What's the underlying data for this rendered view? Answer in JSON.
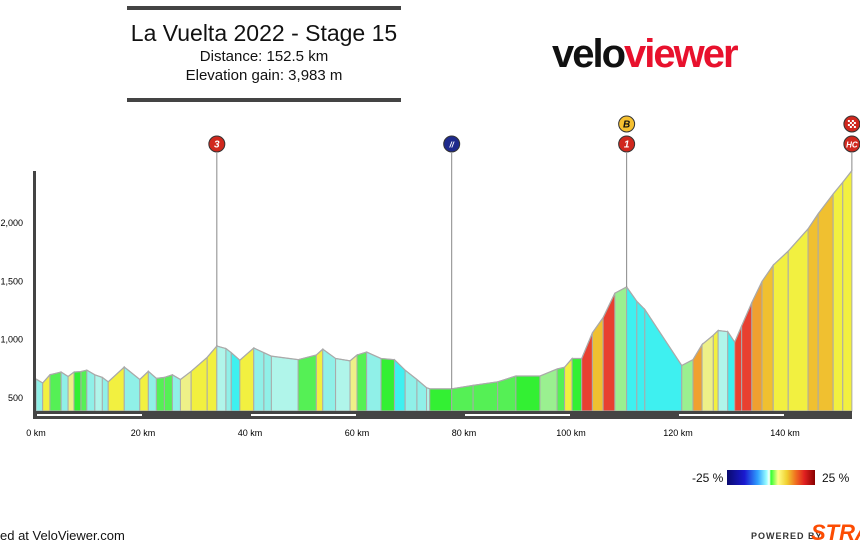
{
  "header": {
    "title": "La Vuelta 2022 - Stage 15",
    "distance": "Distance: 152.5 km",
    "elevation_gain": "Elevation gain: 3,983 m"
  },
  "logo": {
    "part1": "velo",
    "part2": "viewer",
    "accent": "#e8112d"
  },
  "legend": {
    "min_label": "-25 %",
    "max_label": "25 %"
  },
  "footer": {
    "credit": "ed at VeloViewer.com",
    "powered_by": "POWERED BY",
    "brand": "STRA",
    "brand_color": "#fc4c02"
  },
  "chart_data": {
    "type": "area",
    "xlabel": "",
    "ylabel": "",
    "xlim": [
      0,
      152.5
    ],
    "ylim": [
      380,
      2450
    ],
    "x_ticks": [
      "0 km",
      "20 km",
      "40 km",
      "60 km",
      "80 km",
      "100 km",
      "120 km",
      "140 km"
    ],
    "x_tick_values": [
      0,
      20,
      40,
      60,
      80,
      100,
      120,
      140
    ],
    "y_ticks": [
      "500",
      "1,000",
      "1,500",
      "2,000"
    ],
    "y_tick_values": [
      500,
      1000,
      1500,
      2000
    ],
    "color_scale": "gradient % (-25 to 25)",
    "profile": [
      [
        0,
        654
      ],
      [
        1.25,
        620
      ],
      [
        2.6,
        690
      ],
      [
        4.7,
        714
      ],
      [
        6,
        676
      ],
      [
        7.1,
        714
      ],
      [
        8.4,
        718
      ],
      [
        9.5,
        730
      ],
      [
        11,
        690
      ],
      [
        12.4,
        668
      ],
      [
        13.5,
        630
      ],
      [
        16.5,
        757
      ],
      [
        19.4,
        650
      ],
      [
        21,
        720
      ],
      [
        22.5,
        660
      ],
      [
        24,
        668
      ],
      [
        25.5,
        690
      ],
      [
        27,
        650
      ],
      [
        29,
        720
      ],
      [
        32,
        840
      ],
      [
        33.8,
        937
      ],
      [
        35.5,
        915
      ],
      [
        36.5,
        880
      ],
      [
        38.1,
        815
      ],
      [
        40.7,
        920
      ],
      [
        42.6,
        880
      ],
      [
        44,
        850
      ],
      [
        49,
        820
      ],
      [
        52.4,
        860
      ],
      [
        53.6,
        910
      ],
      [
        56,
        830
      ],
      [
        58.7,
        810
      ],
      [
        60,
        860
      ],
      [
        61.8,
        885
      ],
      [
        64.5,
        830
      ],
      [
        67,
        820
      ],
      [
        69,
        730
      ],
      [
        71.2,
        650
      ],
      [
        73,
        580
      ],
      [
        73.6,
        570
      ],
      [
        77.7,
        570
      ],
      [
        81.7,
        600
      ],
      [
        86.3,
        630
      ],
      [
        89.7,
        680
      ],
      [
        94.2,
        680
      ],
      [
        97.4,
        740
      ],
      [
        98.8,
        755
      ],
      [
        100.2,
        830
      ],
      [
        102,
        830
      ],
      [
        104,
        1050
      ],
      [
        106,
        1180
      ],
      [
        108.2,
        1390
      ],
      [
        110.4,
        1443
      ],
      [
        112.3,
        1320
      ],
      [
        113.8,
        1250
      ],
      [
        120.7,
        770
      ],
      [
        122.8,
        820
      ],
      [
        124.5,
        950
      ],
      [
        126.6,
        1030
      ],
      [
        127.5,
        1070
      ],
      [
        129.3,
        1060
      ],
      [
        130.6,
        970
      ],
      [
        131.9,
        1110
      ],
      [
        133.8,
        1310
      ],
      [
        135.7,
        1490
      ],
      [
        137.8,
        1630
      ],
      [
        140.6,
        1750
      ],
      [
        144.3,
        1940
      ],
      [
        146.2,
        2070
      ],
      [
        149,
        2240
      ],
      [
        150.8,
        2340
      ],
      [
        152.5,
        2440
      ]
    ],
    "markers": [
      {
        "km": 33.8,
        "icons": [
          {
            "type": "kom",
            "label": "3",
            "color": "#d0281e"
          }
        ]
      },
      {
        "km": 77.7,
        "icons": [
          {
            "type": "sprint",
            "label": "//",
            "color": "#1e2a8c"
          }
        ]
      },
      {
        "km": 110.4,
        "icons": [
          {
            "type": "bonus",
            "label": "B",
            "color": "#f5c030"
          },
          {
            "type": "kom",
            "label": "1",
            "color": "#d0281e"
          }
        ]
      },
      {
        "km": 152.5,
        "icons": [
          {
            "type": "finish",
            "label": "",
            "color": "#d0281e"
          },
          {
            "type": "kom",
            "label": "HC",
            "color": "#d0281e"
          }
        ]
      }
    ]
  }
}
